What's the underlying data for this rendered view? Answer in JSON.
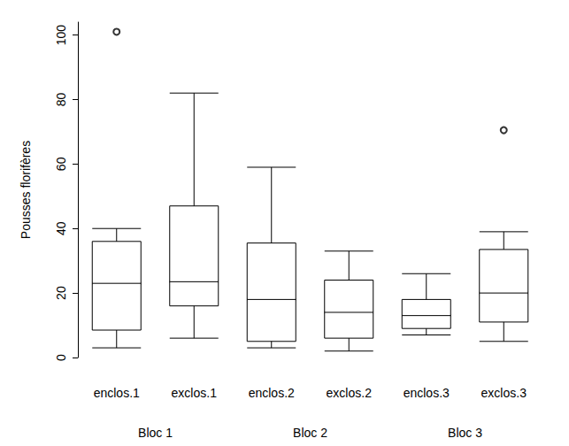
{
  "chart_data": {
    "type": "boxplot",
    "y_label": "Pousses florifères",
    "categories": [
      "enclos.1",
      "exclos.1",
      "enclos.2",
      "exclos.2",
      "enclos.3",
      "exclos.3"
    ],
    "group_labels": [
      "Bloc 1",
      "Bloc 2",
      "Bloc 3"
    ],
    "boxes": [
      [
        3,
        8.5,
        23,
        36,
        40
      ],
      [
        6,
        16,
        23.5,
        47,
        82
      ],
      [
        3,
        5,
        18,
        35.5,
        59
      ],
      [
        2,
        6,
        14,
        24,
        33
      ],
      [
        7,
        9,
        13,
        18,
        26
      ],
      [
        5,
        11,
        20,
        33.5,
        39
      ]
    ],
    "outliers": [
      {
        "category": "enclos.1",
        "value": 101
      },
      {
        "category": "exclos.3",
        "value": 70.5
      }
    ],
    "color": "#000000",
    "ylim": [
      0,
      104
    ],
    "yticks": [
      0,
      20,
      40,
      60,
      80,
      100
    ],
    "grid": false
  }
}
